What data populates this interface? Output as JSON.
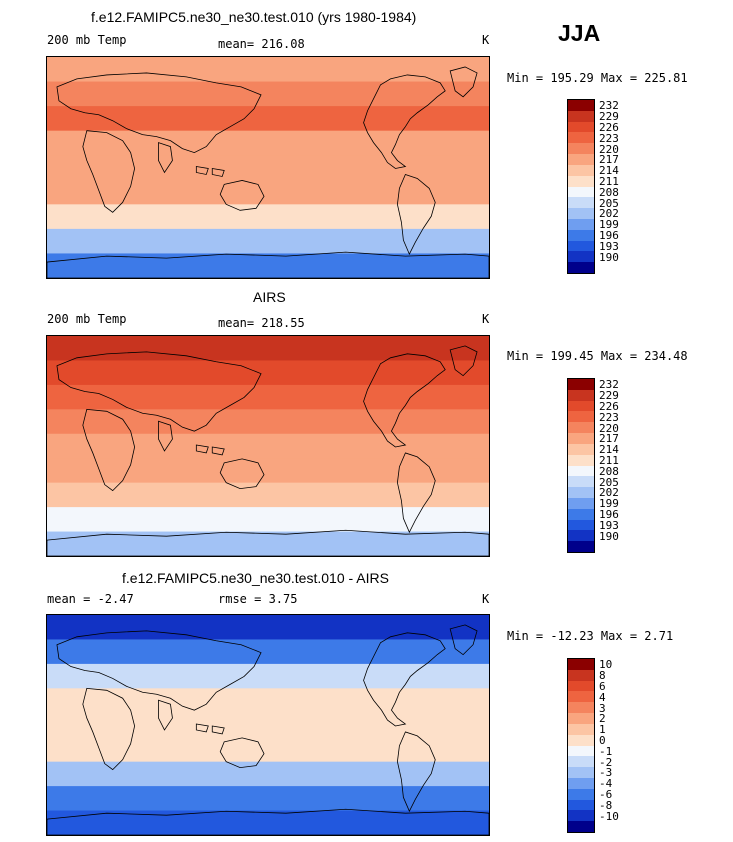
{
  "season": "JJA",
  "colors": {
    "temp_scale": [
      "#00008b",
      "#1233c4",
      "#2258de",
      "#3d7ae8",
      "#6f9ef0",
      "#a2c2f5",
      "#c9dcf8",
      "#f3f7fc",
      "#fde0c9",
      "#fcc5a4",
      "#f9a57f",
      "#f4845e",
      "#ee6440",
      "#e24a2b",
      "#c8341f",
      "#8b0000"
    ],
    "diff_scale": [
      "#00008b",
      "#1233c4",
      "#2258de",
      "#3d7ae8",
      "#6f9ef0",
      "#a2c2f5",
      "#c9dcf8",
      "#f3f7fc",
      "#fde0c9",
      "#fcc5a4",
      "#f9a57f",
      "#f4845e",
      "#ee6440",
      "#e24a2b",
      "#c8341f",
      "#8b0000"
    ]
  },
  "panels": [
    {
      "title": "f.e12.FAMIPC5.ne30_ne30.test.010 (yrs 1980-1984)",
      "left_label": "200 mb Temp",
      "center_label": "mean= 216.08",
      "units": "K",
      "minmax": "Min = 195.29 Max = 225.81"
    },
    {
      "title": "AIRS",
      "left_label": "200 mb Temp",
      "center_label": "mean= 218.55",
      "units": "K",
      "minmax": "Min = 199.45 Max = 234.48"
    },
    {
      "title": "f.e12.FAMIPC5.ne30_ne30.test.010 - AIRS",
      "left_label": "mean =  -2.47",
      "center_label": "rmse =   3.75",
      "units": "K",
      "minmax": "Min = -12.23 Max =   2.71"
    }
  ],
  "chart_data": [
    {
      "type": "heatmap",
      "title": "f.e12.FAMIPC5.ne30_ne30.test.010 (yrs 1980-1984)",
      "variable": "200 mb Temp",
      "units": "K",
      "mean": 216.08,
      "min": 195.29,
      "max": 225.81,
      "lat_bands": [
        80,
        60,
        40,
        20,
        0,
        -20,
        -40,
        -60,
        -80
      ],
      "zonal_values": [
        219,
        221,
        224,
        219,
        218,
        217,
        212,
        203,
        196
      ],
      "colorbar_levels": [
        "232",
        "229",
        "226",
        "223",
        "220",
        "217",
        "214",
        "211",
        "208",
        "205",
        "202",
        "199",
        "196",
        "193",
        "190"
      ]
    },
    {
      "type": "heatmap",
      "title": "AIRS",
      "variable": "200 mb Temp",
      "units": "K",
      "mean": 218.55,
      "min": 199.45,
      "max": 234.48,
      "lat_bands": [
        80,
        60,
        40,
        20,
        0,
        -20,
        -40,
        -60,
        -80
      ],
      "zonal_values": [
        229,
        226,
        225,
        221,
        219,
        219,
        216,
        209,
        203
      ],
      "colorbar_levels": [
        "232",
        "229",
        "226",
        "223",
        "220",
        "217",
        "214",
        "211",
        "208",
        "205",
        "202",
        "199",
        "196",
        "193",
        "190"
      ]
    },
    {
      "type": "heatmap",
      "title": "f.e12.FAMIPC5.ne30_ne30.test.010 - AIRS",
      "units": "K",
      "mean": -2.47,
      "rmse": 3.75,
      "min": -12.23,
      "max": 2.71,
      "lat_bands": [
        80,
        60,
        40,
        20,
        0,
        -20,
        -40,
        -60,
        -80
      ],
      "zonal_values": [
        -9,
        -5,
        -2,
        0,
        0,
        0,
        -3,
        -5,
        -8
      ],
      "colorbar_levels": [
        "10",
        "8",
        "6",
        "4",
        "3",
        "2",
        "1",
        "0",
        "-1",
        "-2",
        "-3",
        "-4",
        "-6",
        "-8",
        "-10"
      ]
    }
  ]
}
